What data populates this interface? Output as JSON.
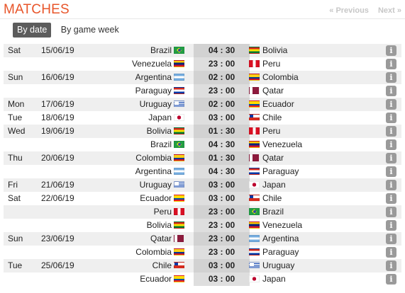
{
  "header": {
    "title": "MATCHES",
    "prev_label": "« Previous",
    "next_label": "Next »"
  },
  "tabs": [
    {
      "label": "By date",
      "active": true
    },
    {
      "label": "By game week",
      "active": false
    }
  ],
  "colors": {
    "title": "#e8552a",
    "active_tab_bg": "#5c5c5c",
    "time_cell_bg": "#dedede",
    "alt_row_bg": "#efefef",
    "info_button_bg": "#9a9a9a"
  },
  "info_label": "i",
  "matches": [
    {
      "day": "Sat",
      "date": "15/06/19",
      "home": "Brazil",
      "home_flag": "br",
      "time": "04 : 30",
      "away": "Bolivia",
      "away_flag": "bo"
    },
    {
      "day": "",
      "date": "",
      "home": "Venezuela",
      "home_flag": "ve",
      "time": "23 : 00",
      "away": "Peru",
      "away_flag": "pe"
    },
    {
      "day": "Sun",
      "date": "16/06/19",
      "home": "Argentina",
      "home_flag": "ar",
      "time": "02 : 00",
      "away": "Colombia",
      "away_flag": "co"
    },
    {
      "day": "",
      "date": "",
      "home": "Paraguay",
      "home_flag": "py",
      "time": "23 : 00",
      "away": "Qatar",
      "away_flag": "qa"
    },
    {
      "day": "Mon",
      "date": "17/06/19",
      "home": "Uruguay",
      "home_flag": "uy",
      "time": "02 : 00",
      "away": "Ecuador",
      "away_flag": "ec"
    },
    {
      "day": "Tue",
      "date": "18/06/19",
      "home": "Japan",
      "home_flag": "jp",
      "time": "03 : 00",
      "away": "Chile",
      "away_flag": "cl"
    },
    {
      "day": "Wed",
      "date": "19/06/19",
      "home": "Bolivia",
      "home_flag": "bo",
      "time": "01 : 30",
      "away": "Peru",
      "away_flag": "pe"
    },
    {
      "day": "",
      "date": "",
      "home": "Brazil",
      "home_flag": "br",
      "time": "04 : 30",
      "away": "Venezuela",
      "away_flag": "ve"
    },
    {
      "day": "Thu",
      "date": "20/06/19",
      "home": "Colombia",
      "home_flag": "co",
      "time": "01 : 30",
      "away": "Qatar",
      "away_flag": "qa"
    },
    {
      "day": "",
      "date": "",
      "home": "Argentina",
      "home_flag": "ar",
      "time": "04 : 30",
      "away": "Paraguay",
      "away_flag": "py"
    },
    {
      "day": "Fri",
      "date": "21/06/19",
      "home": "Uruguay",
      "home_flag": "uy",
      "time": "03 : 00",
      "away": "Japan",
      "away_flag": "jp"
    },
    {
      "day": "Sat",
      "date": "22/06/19",
      "home": "Ecuador",
      "home_flag": "ec",
      "time": "03 : 00",
      "away": "Chile",
      "away_flag": "cl"
    },
    {
      "day": "",
      "date": "",
      "home": "Peru",
      "home_flag": "pe",
      "time": "23 : 00",
      "away": "Brazil",
      "away_flag": "br"
    },
    {
      "day": "",
      "date": "",
      "home": "Bolivia",
      "home_flag": "bo",
      "time": "23 : 00",
      "away": "Venezuela",
      "away_flag": "ve"
    },
    {
      "day": "Sun",
      "date": "23/06/19",
      "home": "Qatar",
      "home_flag": "qa",
      "time": "23 : 00",
      "away": "Argentina",
      "away_flag": "ar"
    },
    {
      "day": "",
      "date": "",
      "home": "Colombia",
      "home_flag": "co",
      "time": "23 : 00",
      "away": "Paraguay",
      "away_flag": "py"
    },
    {
      "day": "Tue",
      "date": "25/06/19",
      "home": "Chile",
      "home_flag": "cl",
      "time": "03 : 00",
      "away": "Uruguay",
      "away_flag": "uy"
    },
    {
      "day": "",
      "date": "",
      "home": "Ecuador",
      "home_flag": "ec",
      "time": "03 : 00",
      "away": "Japan",
      "away_flag": "jp"
    }
  ]
}
